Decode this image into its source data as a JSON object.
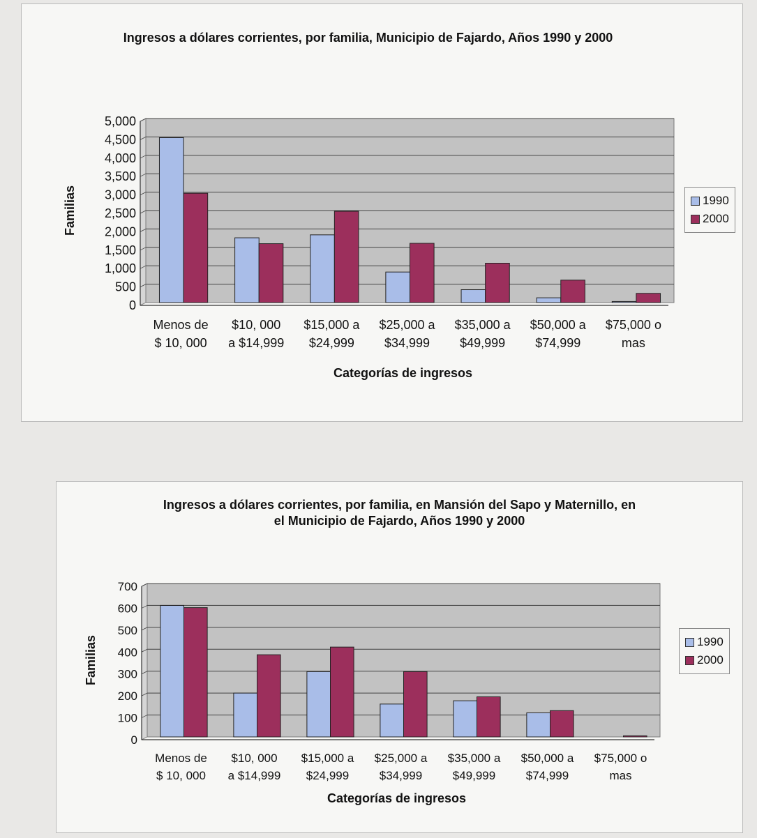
{
  "colors": {
    "series_1990": "#a9bde8",
    "series_2000": "#9c2f5c",
    "plot_bg": "#c2c2c2",
    "grid": "#444444"
  },
  "chart_data": [
    {
      "type": "bar",
      "title": "Ingresos a dólares corrientes, por familia, Municipio de Fajardo, Años 1990 y 2000",
      "xlabel": "Categorías de ingresos",
      "ylabel": "Familias",
      "categories": [
        [
          "Menos de",
          "$ 10, 000"
        ],
        [
          "$10, 000",
          "a $14,999"
        ],
        [
          "$15,000 a",
          "$24,999"
        ],
        [
          "$25,000 a",
          "$34,999"
        ],
        [
          "$35,000 a",
          "$49,999"
        ],
        [
          "$50,000 a",
          "$74,999"
        ],
        [
          "$75,000 o",
          "mas"
        ]
      ],
      "ylim": [
        0,
        5000
      ],
      "yticks": [
        "0",
        "500",
        "1,000",
        "1,500",
        "2,000",
        "2,500",
        "3,000",
        "3,500",
        "4,000",
        "4,500",
        "5,000"
      ],
      "grid": true,
      "legend_position": "right",
      "series": [
        {
          "name": "1990",
          "values": [
            4480,
            1760,
            1840,
            830,
            350,
            130,
            30
          ]
        },
        {
          "name": "2000",
          "values": [
            2970,
            1600,
            2480,
            1610,
            1070,
            610,
            250
          ]
        }
      ]
    },
    {
      "type": "bar",
      "title": "Ingresos a dólares corrientes, por familia, en Mansión del Sapo y Maternillo, en el Municipio de Fajardo, Años 1990 y 2000",
      "xlabel": "Categorías de ingresos",
      "ylabel": "Familias",
      "categories": [
        [
          "Menos de",
          "$ 10, 000"
        ],
        [
          "$10, 000",
          "a $14,999"
        ],
        [
          "$15,000 a",
          "$24,999"
        ],
        [
          "$25,000 a",
          "$34,999"
        ],
        [
          "$35,000 a",
          "$49,999"
        ],
        [
          "$50,000 a",
          "$74,999"
        ],
        [
          "$75,000 o",
          "mas"
        ]
      ],
      "ylim": [
        0,
        700
      ],
      "yticks": [
        "0",
        "100",
        "200",
        "300",
        "400",
        "500",
        "600",
        "700"
      ],
      "grid": true,
      "legend_position": "right",
      "series": [
        {
          "name": "1990",
          "values": [
            600,
            200,
            298,
            150,
            165,
            110,
            0
          ]
        },
        {
          "name": "2000",
          "values": [
            590,
            375,
            410,
            298,
            183,
            120,
            5
          ]
        }
      ]
    }
  ]
}
